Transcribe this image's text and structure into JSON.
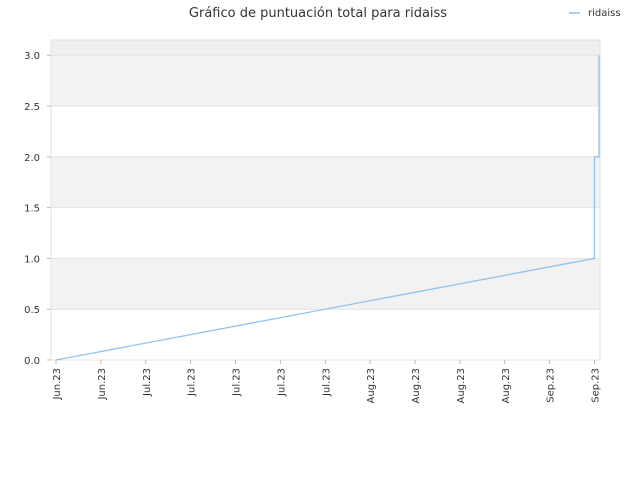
{
  "chart_data": {
    "type": "line",
    "title": "Gráfico de puntuación total para ridaiss",
    "xlabel": "",
    "ylabel": "",
    "x_tick_labels": [
      "Jun.23",
      "Jun.23",
      "Jul.23",
      "Jul.23",
      "Jul.23",
      "Jul.23",
      "Jul.23",
      "Aug.23",
      "Aug.23",
      "Aug.23",
      "Aug.23",
      "Sep.23",
      "Sep.23"
    ],
    "ylim": [
      0,
      3.15
    ],
    "y_ticks": [
      "0.0",
      "0.5",
      "1.0",
      "1.5",
      "2.0",
      "2.5",
      "3.0"
    ],
    "grid": true,
    "legend_position": "top-right",
    "series": [
      {
        "name": "ridaiss",
        "color": "#92c3ef",
        "points": [
          {
            "x": 0,
            "y": 0
          },
          {
            "x": 12.0,
            "y": 1
          },
          {
            "x": 12.0,
            "y": 2
          },
          {
            "x": 12.1,
            "y": 2
          },
          {
            "x": 12.1,
            "y": 3
          }
        ]
      }
    ]
  }
}
